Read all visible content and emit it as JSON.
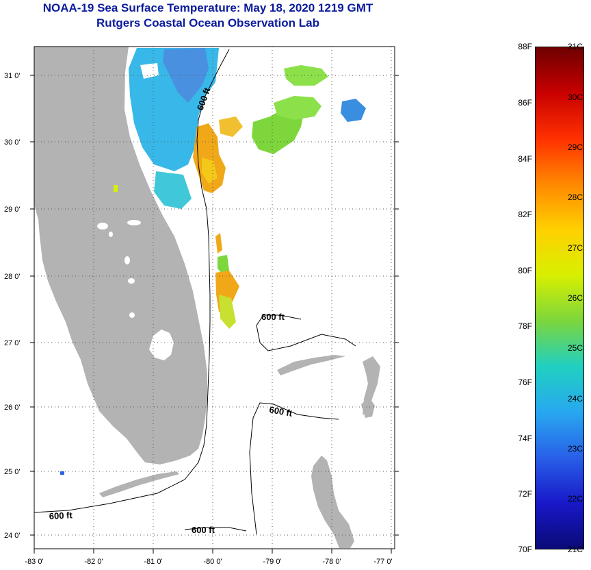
{
  "header": {
    "title": "NOAA-19 Sea Surface Temperature:  May 18, 2020 1219 GMT",
    "subtitle": "Rutgers Coastal Ocean Observation Lab"
  },
  "map": {
    "lat_labels": [
      "31 0'",
      "30 0'",
      "29 0'",
      "28 0'",
      "27 0'",
      "26 0'",
      "25 0'",
      "24 0'"
    ],
    "lon_labels": [
      "-83 0'",
      "-82 0'",
      "-81 0'",
      "-80 0'",
      "-79 0'",
      "-78 0'",
      "-77 0'"
    ],
    "contour_label": "600 ft",
    "colors": {
      "land": "#b3b3b3",
      "ocean_missing": "#ffffff",
      "grid": "#555555"
    }
  },
  "colorbar": {
    "fahrenheit_labels": [
      "88F",
      "86F",
      "84F",
      "82F",
      "80F",
      "78F",
      "76F",
      "74F",
      "72F",
      "70F"
    ],
    "celsius_labels": [
      "31C",
      "30C",
      "29C",
      "28C",
      "27C",
      "26C",
      "25C",
      "24C",
      "23C",
      "22C",
      "21C"
    ],
    "gradient": [
      "#6e0000",
      "#c80000",
      "#ff3000",
      "#ff8800",
      "#ffd000",
      "#d8f000",
      "#7cd63c",
      "#20d0c0",
      "#28a8f0",
      "#2860e8",
      "#1818c8",
      "#0a0a78"
    ]
  }
}
